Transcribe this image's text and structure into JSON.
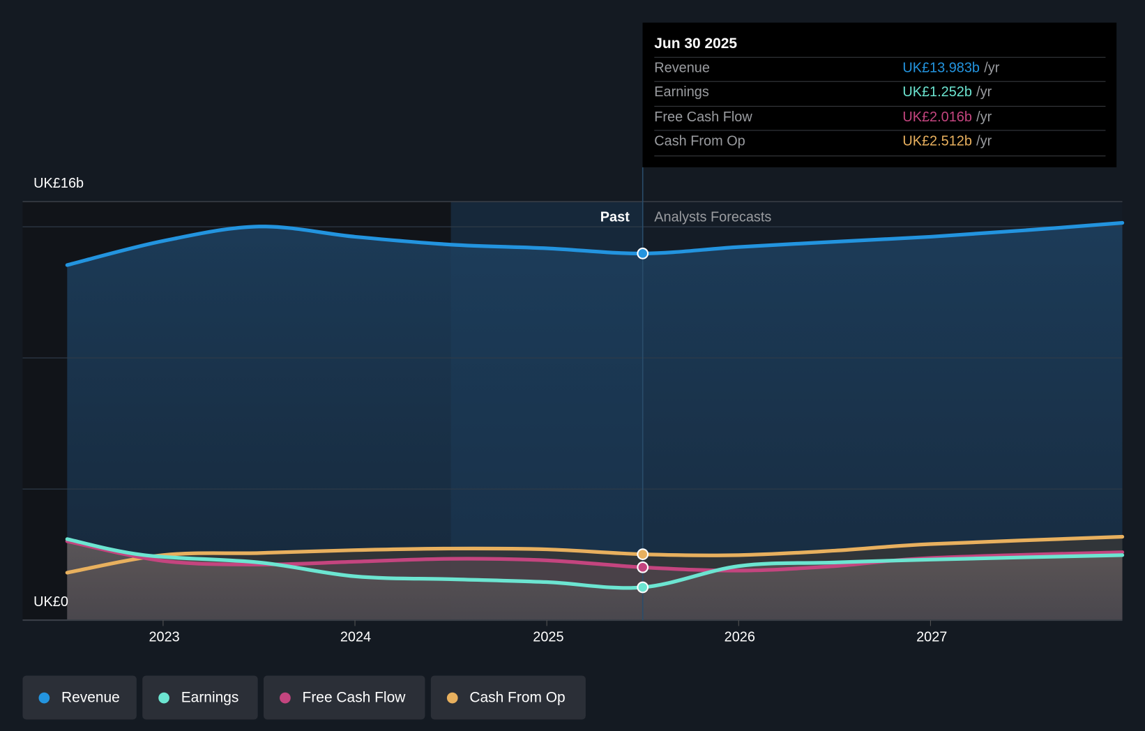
{
  "chart_data": {
    "type": "area",
    "ylabel_top": "UK£16b",
    "ylabel_bottom": "UK£0",
    "ylim": [
      0,
      16
    ],
    "xlim": [
      2022.5,
      2028.0
    ],
    "x_ticks": [
      "2023",
      "2024",
      "2025",
      "2026",
      "2027"
    ],
    "x_tick_values": [
      2023,
      2024,
      2025,
      2026,
      2027
    ],
    "gridlines": [
      5,
      10,
      15
    ],
    "past_label": "Past",
    "forecast_label": "Analysts Forecasts",
    "divider_x": 2025.5,
    "highlight_start": 2024.5,
    "series": [
      {
        "name": "Revenue",
        "color": "#2394df",
        "x": [
          2022.5,
          2023.0,
          2023.5,
          2024.0,
          2024.5,
          2025.0,
          2025.5,
          2026.0,
          2026.5,
          2027.0,
          2027.5,
          2028.0
        ],
        "values": [
          13.54,
          14.46,
          15.01,
          14.62,
          14.32,
          14.18,
          13.983,
          14.23,
          14.43,
          14.62,
          14.87,
          15.15
        ]
      },
      {
        "name": "Earnings",
        "color": "#6ce5d1",
        "x": [
          2022.5,
          2022.9,
          2023.5,
          2024.0,
          2024.5,
          2025.0,
          2025.5,
          2026.0,
          2026.5,
          2027.0,
          2028.0
        ],
        "values": [
          3.09,
          2.48,
          2.2,
          1.67,
          1.56,
          1.45,
          1.252,
          2.06,
          2.2,
          2.31,
          2.48
        ]
      },
      {
        "name": "Free Cash Flow",
        "color": "#c4457f",
        "x": [
          2022.5,
          2023.0,
          2023.5,
          2024.0,
          2024.5,
          2025.0,
          2025.5,
          2026.0,
          2026.5,
          2027.0,
          2028.0
        ],
        "values": [
          3.01,
          2.26,
          2.12,
          2.23,
          2.34,
          2.28,
          2.016,
          1.89,
          2.06,
          2.37,
          2.59
        ]
      },
      {
        "name": "Cash From Op",
        "color": "#e8b05e",
        "x": [
          2022.5,
          2023.0,
          2023.5,
          2024.0,
          2024.5,
          2025.0,
          2025.5,
          2026.0,
          2026.5,
          2027.0,
          2028.0
        ],
        "values": [
          1.81,
          2.48,
          2.56,
          2.67,
          2.73,
          2.7,
          2.512,
          2.48,
          2.65,
          2.9,
          3.18
        ]
      }
    ]
  },
  "tooltip": {
    "date": "Jun 30 2025",
    "unit": "/yr",
    "rows": [
      {
        "label": "Revenue",
        "value": "UK£13.983b",
        "color": "#2394df"
      },
      {
        "label": "Earnings",
        "value": "UK£1.252b",
        "color": "#6ce5d1"
      },
      {
        "label": "Free Cash Flow",
        "value": "UK£2.016b",
        "color": "#c4457f"
      },
      {
        "label": "Cash From Op",
        "value": "UK£2.512b",
        "color": "#e8b05e"
      }
    ]
  },
  "legend": [
    {
      "label": "Revenue",
      "color": "#2394df"
    },
    {
      "label": "Earnings",
      "color": "#6ce5d1"
    },
    {
      "label": "Free Cash Flow",
      "color": "#c4457f"
    },
    {
      "label": "Cash From Op",
      "color": "#e8b05e"
    }
  ]
}
